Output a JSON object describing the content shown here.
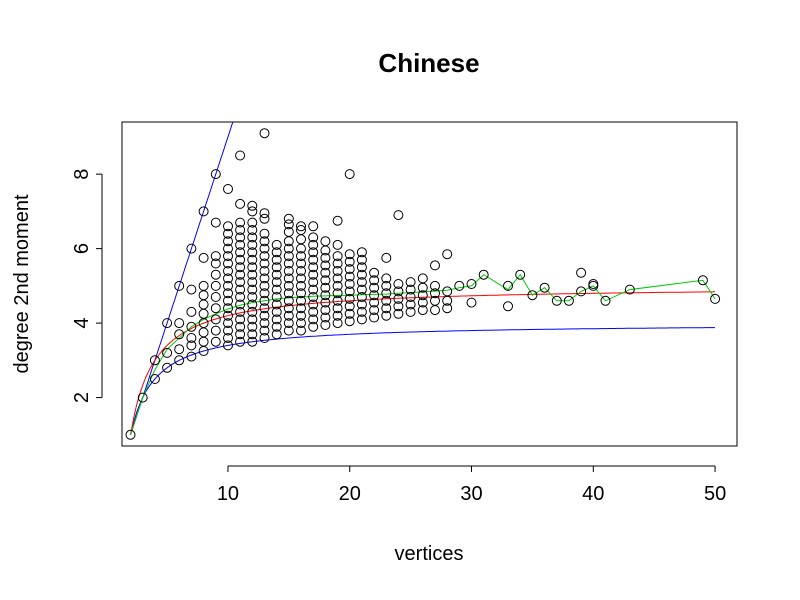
{
  "chart_data": {
    "type": "scatter",
    "title": "Chinese",
    "xlabel": "vertices",
    "ylabel": "degree 2nd moment",
    "xlim": [
      1.3,
      51.8
    ],
    "ylim": [
      0.7,
      9.4
    ],
    "x_ticks": [
      10,
      20,
      30,
      40,
      50
    ],
    "y_ticks": [
      2,
      4,
      6,
      8
    ],
    "grid": false,
    "colors": {
      "points": "#000000",
      "upper_bound": "#0000ff",
      "lower_bound": "#0000ff",
      "expected": "#ff0000",
      "mean": "#00cc00"
    },
    "points": [
      [
        2,
        1
      ],
      [
        3,
        2
      ],
      [
        4,
        2.5
      ],
      [
        4,
        3
      ],
      [
        5,
        2.8
      ],
      [
        5,
        3.2
      ],
      [
        5,
        4
      ],
      [
        6,
        3
      ],
      [
        6,
        3.3
      ],
      [
        6,
        3.7
      ],
      [
        6,
        4
      ],
      [
        6,
        5
      ],
      [
        7,
        3.1
      ],
      [
        7,
        3.4
      ],
      [
        7,
        3.6
      ],
      [
        7,
        3.9
      ],
      [
        7,
        4.3
      ],
      [
        7,
        4.9
      ],
      [
        7,
        6
      ],
      [
        8,
        3.25
      ],
      [
        8,
        3.5
      ],
      [
        8,
        3.75
      ],
      [
        8,
        4
      ],
      [
        8,
        4.25
      ],
      [
        8,
        4.5
      ],
      [
        8,
        4.75
      ],
      [
        8,
        5
      ],
      [
        8,
        5.75
      ],
      [
        8,
        7
      ],
      [
        9,
        3.5
      ],
      [
        9,
        3.8
      ],
      [
        9,
        4.1
      ],
      [
        9,
        4.4
      ],
      [
        9,
        4.7
      ],
      [
        9,
        5.0
      ],
      [
        9,
        5.3
      ],
      [
        9,
        5.6
      ],
      [
        9,
        5.8
      ],
      [
        9,
        6.7
      ],
      [
        9,
        8
      ],
      [
        10,
        3.4
      ],
      [
        10,
        3.6
      ],
      [
        10,
        3.8
      ],
      [
        10,
        4.0
      ],
      [
        10,
        4.2
      ],
      [
        10,
        4.4
      ],
      [
        10,
        4.6
      ],
      [
        10,
        4.8
      ],
      [
        10,
        5.0
      ],
      [
        10,
        5.2
      ],
      [
        10,
        5.4
      ],
      [
        10,
        5.6
      ],
      [
        10,
        5.8
      ],
      [
        10,
        6.0
      ],
      [
        10,
        6.2
      ],
      [
        10,
        6.4
      ],
      [
        10,
        6.6
      ],
      [
        10,
        7.6
      ],
      [
        11,
        3.5
      ],
      [
        11,
        3.7
      ],
      [
        11,
        3.9
      ],
      [
        11,
        4.1
      ],
      [
        11,
        4.3
      ],
      [
        11,
        4.5
      ],
      [
        11,
        4.7
      ],
      [
        11,
        4.9
      ],
      [
        11,
        5.1
      ],
      [
        11,
        5.3
      ],
      [
        11,
        5.5
      ],
      [
        11,
        5.7
      ],
      [
        11,
        5.9
      ],
      [
        11,
        6.1
      ],
      [
        11,
        6.3
      ],
      [
        11,
        6.5
      ],
      [
        11,
        6.7
      ],
      [
        11,
        7.2
      ],
      [
        11,
        8.5
      ],
      [
        12,
        3.5
      ],
      [
        12,
        3.7
      ],
      [
        12,
        3.9
      ],
      [
        12,
        4.1
      ],
      [
        12,
        4.3
      ],
      [
        12,
        4.5
      ],
      [
        12,
        4.7
      ],
      [
        12,
        4.9
      ],
      [
        12,
        5.1
      ],
      [
        12,
        5.3
      ],
      [
        12,
        5.5
      ],
      [
        12,
        5.7
      ],
      [
        12,
        5.9
      ],
      [
        12,
        6.1
      ],
      [
        12,
        6.3
      ],
      [
        12,
        6.5
      ],
      [
        12,
        6.7
      ],
      [
        12,
        7.0
      ],
      [
        12,
        7.15
      ],
      [
        13,
        3.6
      ],
      [
        13,
        3.8
      ],
      [
        13,
        4.0
      ],
      [
        13,
        4.2
      ],
      [
        13,
        4.4
      ],
      [
        13,
        4.6
      ],
      [
        13,
        4.8
      ],
      [
        13,
        5.0
      ],
      [
        13,
        5.2
      ],
      [
        13,
        5.4
      ],
      [
        13,
        5.6
      ],
      [
        13,
        5.8
      ],
      [
        13,
        6.0
      ],
      [
        13,
        6.2
      ],
      [
        13,
        6.4
      ],
      [
        13,
        6.8
      ],
      [
        13,
        6.95
      ],
      [
        13,
        9.1
      ],
      [
        14,
        3.7
      ],
      [
        14,
        3.9
      ],
      [
        14,
        4.1
      ],
      [
        14,
        4.3
      ],
      [
        14,
        4.5
      ],
      [
        14,
        4.7
      ],
      [
        14,
        4.9
      ],
      [
        14,
        5.1
      ],
      [
        14,
        5.3
      ],
      [
        14,
        5.5
      ],
      [
        14,
        5.7
      ],
      [
        14,
        5.9
      ],
      [
        14,
        6.1
      ],
      [
        15,
        3.8
      ],
      [
        15,
        4.0
      ],
      [
        15,
        4.2
      ],
      [
        15,
        4.4
      ],
      [
        15,
        4.6
      ],
      [
        15,
        4.8
      ],
      [
        15,
        5.0
      ],
      [
        15,
        5.2
      ],
      [
        15,
        5.4
      ],
      [
        15,
        5.6
      ],
      [
        15,
        5.8
      ],
      [
        15,
        6.0
      ],
      [
        15,
        6.2
      ],
      [
        15,
        6.45
      ],
      [
        15,
        6.65
      ],
      [
        15,
        6.8
      ],
      [
        16,
        3.8
      ],
      [
        16,
        4.0
      ],
      [
        16,
        4.2
      ],
      [
        16,
        4.4
      ],
      [
        16,
        4.6
      ],
      [
        16,
        4.8
      ],
      [
        16,
        5.0
      ],
      [
        16,
        5.2
      ],
      [
        16,
        5.4
      ],
      [
        16,
        5.6
      ],
      [
        16,
        5.8
      ],
      [
        16,
        6.0
      ],
      [
        16,
        6.25
      ],
      [
        16,
        6.5
      ],
      [
        16,
        6.6
      ],
      [
        17,
        3.9
      ],
      [
        17,
        4.1
      ],
      [
        17,
        4.3
      ],
      [
        17,
        4.5
      ],
      [
        17,
        4.7
      ],
      [
        17,
        4.9
      ],
      [
        17,
        5.1
      ],
      [
        17,
        5.3
      ],
      [
        17,
        5.5
      ],
      [
        17,
        5.7
      ],
      [
        17,
        5.9
      ],
      [
        17,
        6.1
      ],
      [
        17,
        6.3
      ],
      [
        17,
        6.6
      ],
      [
        18,
        3.95
      ],
      [
        18,
        4.15
      ],
      [
        18,
        4.35
      ],
      [
        18,
        4.55
      ],
      [
        18,
        4.75
      ],
      [
        18,
        4.95
      ],
      [
        18,
        5.15
      ],
      [
        18,
        5.35
      ],
      [
        18,
        5.55
      ],
      [
        18,
        5.75
      ],
      [
        18,
        5.95
      ],
      [
        18,
        6.2
      ],
      [
        19,
        4.0
      ],
      [
        19,
        4.2
      ],
      [
        19,
        4.4
      ],
      [
        19,
        4.6
      ],
      [
        19,
        4.8
      ],
      [
        19,
        5.0
      ],
      [
        19,
        5.2
      ],
      [
        19,
        5.4
      ],
      [
        19,
        5.6
      ],
      [
        19,
        5.8
      ],
      [
        19,
        6.1
      ],
      [
        19,
        6.75
      ],
      [
        20,
        4.05
      ],
      [
        20,
        4.25
      ],
      [
        20,
        4.45
      ],
      [
        20,
        4.65
      ],
      [
        20,
        4.85
      ],
      [
        20,
        5.05
      ],
      [
        20,
        5.25
      ],
      [
        20,
        5.45
      ],
      [
        20,
        5.65
      ],
      [
        20,
        5.85
      ],
      [
        20,
        8
      ],
      [
        21,
        4.1
      ],
      [
        21,
        4.3
      ],
      [
        21,
        4.5
      ],
      [
        21,
        4.7
      ],
      [
        21,
        4.9
      ],
      [
        21,
        5.1
      ],
      [
        21,
        5.3
      ],
      [
        21,
        5.5
      ],
      [
        21,
        5.7
      ],
      [
        21,
        5.9
      ],
      [
        22,
        4.15
      ],
      [
        22,
        4.35
      ],
      [
        22,
        4.55
      ],
      [
        22,
        4.75
      ],
      [
        22,
        4.95
      ],
      [
        22,
        5.15
      ],
      [
        22,
        5.35
      ],
      [
        23,
        4.2
      ],
      [
        23,
        4.4
      ],
      [
        23,
        4.6
      ],
      [
        23,
        4.8
      ],
      [
        23,
        5.0
      ],
      [
        23,
        5.2
      ],
      [
        23,
        5.75
      ],
      [
        24,
        4.25
      ],
      [
        24,
        4.45
      ],
      [
        24,
        4.65
      ],
      [
        24,
        4.85
      ],
      [
        24,
        5.05
      ],
      [
        24,
        6.9
      ],
      [
        25,
        4.3
      ],
      [
        25,
        4.5
      ],
      [
        25,
        4.7
      ],
      [
        25,
        4.9
      ],
      [
        25,
        5.1
      ],
      [
        26,
        4.35
      ],
      [
        26,
        4.55
      ],
      [
        26,
        4.75
      ],
      [
        26,
        4.95
      ],
      [
        26,
        5.2
      ],
      [
        27,
        4.35
      ],
      [
        27,
        4.6
      ],
      [
        27,
        4.8
      ],
      [
        27,
        5.0
      ],
      [
        27,
        5.55
      ],
      [
        28,
        4.4
      ],
      [
        28,
        4.6
      ],
      [
        28,
        4.85
      ],
      [
        28,
        5.85
      ],
      [
        29,
        5.0
      ],
      [
        30,
        4.55
      ],
      [
        30,
        5.05
      ],
      [
        31,
        5.3
      ],
      [
        33,
        4.45
      ],
      [
        33,
        5.0
      ],
      [
        34,
        5.3
      ],
      [
        35,
        4.75
      ],
      [
        36,
        4.95
      ],
      [
        37,
        4.6
      ],
      [
        38,
        4.6
      ],
      [
        39,
        4.85
      ],
      [
        39,
        5.35
      ],
      [
        40,
        5.0
      ],
      [
        40,
        5.05
      ],
      [
        41,
        4.6
      ],
      [
        43,
        4.9
      ],
      [
        49,
        5.15
      ],
      [
        50,
        4.65
      ]
    ],
    "mean_line": [
      [
        2,
        1
      ],
      [
        3,
        2
      ],
      [
        4,
        2.75
      ],
      [
        5,
        3.3
      ],
      [
        6,
        3.6
      ],
      [
        7,
        3.9
      ],
      [
        8,
        4.1
      ],
      [
        9,
        4.25
      ],
      [
        10,
        4.38
      ],
      [
        11,
        4.48
      ],
      [
        12,
        4.55
      ],
      [
        13,
        4.6
      ],
      [
        14,
        4.65
      ],
      [
        15,
        4.68
      ],
      [
        16,
        4.7
      ],
      [
        17,
        4.72
      ],
      [
        18,
        4.73
      ],
      [
        19,
        4.74
      ],
      [
        20,
        4.75
      ],
      [
        21,
        4.76
      ],
      [
        22,
        4.77
      ],
      [
        23,
        4.78
      ],
      [
        24,
        4.8
      ],
      [
        25,
        4.82
      ],
      [
        26,
        4.84
      ],
      [
        27,
        4.86
      ],
      [
        28,
        4.88
      ],
      [
        29,
        4.95
      ],
      [
        30,
        5.0
      ],
      [
        31,
        5.3
      ],
      [
        33,
        4.9
      ],
      [
        34,
        5.3
      ],
      [
        35,
        4.75
      ],
      [
        36,
        4.95
      ],
      [
        37,
        4.6
      ],
      [
        38,
        4.6
      ],
      [
        39,
        4.85
      ],
      [
        40,
        5.0
      ],
      [
        41,
        4.6
      ],
      [
        43,
        4.9
      ],
      [
        49,
        5.15
      ],
      [
        50,
        4.65
      ]
    ]
  }
}
